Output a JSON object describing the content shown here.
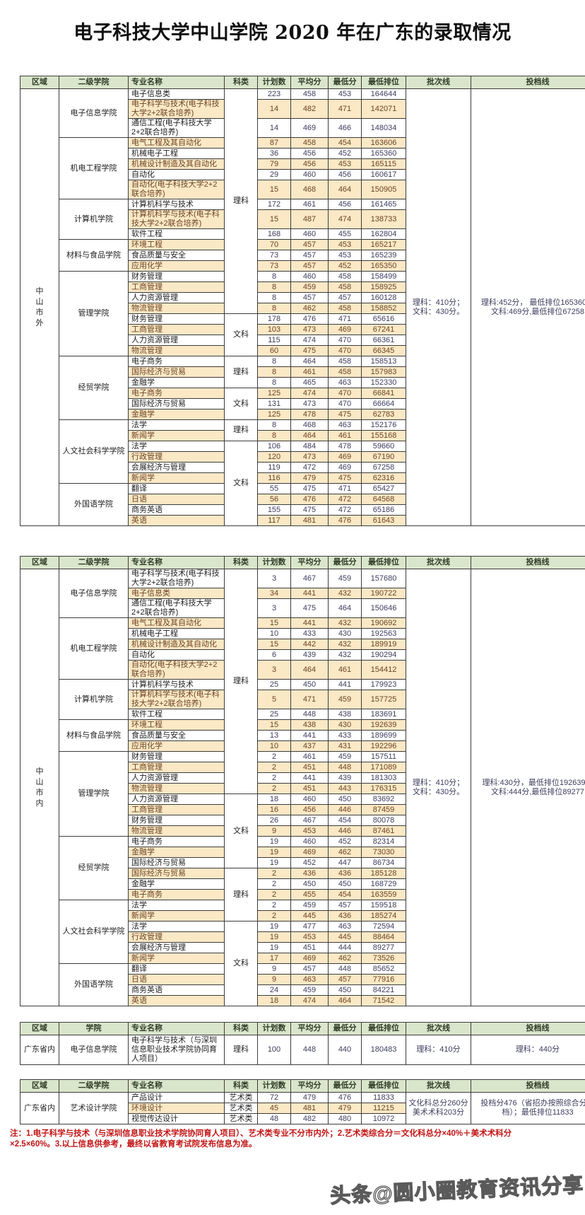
{
  "page": {
    "title": "电子科技大学中山学院 2020 年在广东的录取情况",
    "watermark": "头条@圆小圈教育资讯分享"
  },
  "note": {
    "line1": "注：1.电子科学与技术（与深圳信息职业技术学院协同育人项目）、艺术类专业不分市内外；2.艺术类综合分＝文化科总分×40%＋美术术科分",
    "line2": "×2.5×60%。3.以上信息供参考，最终以省教育考试院发布信息为准。"
  },
  "tables": [
    {
      "headers": [
        "区域",
        "二级学院",
        "专业名称",
        "科类",
        "计划数",
        "平均分",
        "最低分",
        "最低排位",
        "批次线",
        "投档线"
      ],
      "region": {
        "text": "中山市外",
        "vertical": true
      },
      "batch_line": [
        "理科：410分；",
        "文科：430分。"
      ],
      "admission_line": [
        "理科:452分， 最低排位165360；",
        "文科:469分,最低排位67258"
      ],
      "rows": [
        {
          "college": "电子信息学院",
          "cspan": 3,
          "subject": "理科",
          "sspan": 18,
          "major": "电子信息类",
          "plan": "223",
          "avg": "458",
          "min": "453",
          "rank": "164644"
        },
        {
          "major": "电子科学与技术(电子科技大学2+2联合培养)",
          "tall": 2,
          "plan": "14",
          "avg": "482",
          "min": "471",
          "rank": "142071"
        },
        {
          "major": "通信工程(电子科技大学2+2联合培养)",
          "tall": 2,
          "plan": "14",
          "avg": "469",
          "min": "466",
          "rank": "148034"
        },
        {
          "college": "机电工程学院",
          "cspan": 5,
          "major": "电气工程及其自动化",
          "plan": "87",
          "avg": "458",
          "min": "454",
          "rank": "163606"
        },
        {
          "major": "机械电子工程",
          "plan": "36",
          "avg": "456",
          "min": "452",
          "rank": "165360"
        },
        {
          "major": "机械设计制造及其自动化",
          "plan": "79",
          "avg": "456",
          "min": "453",
          "rank": "165115"
        },
        {
          "major": "自动化",
          "plan": "29",
          "avg": "460",
          "min": "456",
          "rank": "160617"
        },
        {
          "major": "自动化(电子科技大学2+2联合培养)",
          "tall": 2,
          "plan": "15",
          "avg": "468",
          "min": "464",
          "rank": "150905"
        },
        {
          "college": "计算机学院",
          "cspan": 3,
          "major": "计算机科学与技术",
          "plan": "172",
          "avg": "461",
          "min": "456",
          "rank": "161465"
        },
        {
          "major": "计算机科学与技术(电子科技大学2+2联合培养)",
          "tall": 2,
          "plan": "15",
          "avg": "487",
          "min": "474",
          "rank": "138733"
        },
        {
          "major": "软件工程",
          "plan": "168",
          "avg": "460",
          "min": "455",
          "rank": "162804"
        },
        {
          "college": "材料与食品学院",
          "cspan": 3,
          "major": "环境工程",
          "plan": "70",
          "avg": "457",
          "min": "453",
          "rank": "165217"
        },
        {
          "major": "食品质量与安全",
          "plan": "73",
          "avg": "457",
          "min": "453",
          "rank": "165239"
        },
        {
          "major": "应用化学",
          "plan": "73",
          "avg": "457",
          "min": "452",
          "rank": "165350"
        },
        {
          "college": "管理学院",
          "cspan": 8,
          "major": "财务管理",
          "plan": "8",
          "avg": "460",
          "min": "458",
          "rank": "158499"
        },
        {
          "major": "工商管理",
          "plan": "8",
          "avg": "459",
          "min": "458",
          "rank": "158925"
        },
        {
          "major": "人力资源管理",
          "plan": "8",
          "avg": "457",
          "min": "457",
          "rank": "160128"
        },
        {
          "major": "物流管理",
          "plan": "8",
          "avg": "462",
          "min": "458",
          "rank": "158852"
        },
        {
          "major": "财务管理",
          "subject": "文科",
          "sspan": 4,
          "plan": "178",
          "avg": "476",
          "min": "471",
          "rank": "65616"
        },
        {
          "major": "工商管理",
          "plan": "103",
          "avg": "473",
          "min": "469",
          "rank": "67241"
        },
        {
          "major": "人力资源管理",
          "plan": "115",
          "avg": "474",
          "min": "470",
          "rank": "66361"
        },
        {
          "major": "物流管理",
          "plan": "60",
          "avg": "475",
          "min": "470",
          "rank": "66345"
        },
        {
          "college": "经贸学院",
          "cspan": 6,
          "major": "电子商务",
          "subject": "理科",
          "sspan": 3,
          "plan": "8",
          "avg": "464",
          "min": "458",
          "rank": "158513"
        },
        {
          "major": "国际经济与贸易",
          "plan": "8",
          "avg": "461",
          "min": "458",
          "rank": "157983"
        },
        {
          "major": "金融学",
          "plan": "8",
          "avg": "465",
          "min": "463",
          "rank": "152330"
        },
        {
          "major": "电子商务",
          "subject": "文科",
          "sspan": 3,
          "plan": "125",
          "avg": "474",
          "min": "470",
          "rank": "66841"
        },
        {
          "major": "国际经济与贸易",
          "plan": "131",
          "avg": "473",
          "min": "470",
          "rank": "66664"
        },
        {
          "major": "金融学",
          "plan": "125",
          "avg": "478",
          "min": "475",
          "rank": "62783"
        },
        {
          "college": "人文社会科学学院",
          "cspan": 6,
          "major": "法学",
          "subject": "理科",
          "sspan": 2,
          "plan": "8",
          "avg": "468",
          "min": "463",
          "rank": "152176"
        },
        {
          "major": "新闻学",
          "plan": "8",
          "avg": "464",
          "min": "461",
          "rank": "155168"
        },
        {
          "major": "法学",
          "subject": "文科",
          "sspan": 8,
          "plan": "106",
          "avg": "484",
          "min": "478",
          "rank": "59660"
        },
        {
          "major": "行政管理",
          "plan": "120",
          "avg": "473",
          "min": "469",
          "rank": "67190"
        },
        {
          "major": "会展经济与管理",
          "plan": "119",
          "avg": "472",
          "min": "469",
          "rank": "67258"
        },
        {
          "major": "新闻学",
          "plan": "116",
          "avg": "479",
          "min": "475",
          "rank": "62316"
        },
        {
          "college": "外国语学院",
          "cspan": 4,
          "major": "翻译",
          "plan": "55",
          "avg": "475",
          "min": "471",
          "rank": "65427"
        },
        {
          "major": "日语",
          "plan": "56",
          "avg": "476",
          "min": "472",
          "rank": "64568"
        },
        {
          "major": "商务英语",
          "plan": "155",
          "avg": "475",
          "min": "472",
          "rank": "65186"
        },
        {
          "major": "英语",
          "plan": "117",
          "avg": "481",
          "min": "476",
          "rank": "61643"
        }
      ]
    },
    {
      "headers": [
        "区域",
        "二级学院",
        "专业名称",
        "科类",
        "计划数",
        "平均分",
        "最低分",
        "最低排位",
        "批次线",
        "投档线"
      ],
      "region": {
        "text": "中山市内",
        "vertical": true
      },
      "batch_line": [
        "理科：410分；",
        "文科：430分。"
      ],
      "admission_line": [
        "理科:430分，最低排位192639；",
        "文科:444分,最低排位89277"
      ],
      "rows": [
        {
          "college": "电子信息学院",
          "cspan": 3,
          "subject": "理科",
          "sspan": 18,
          "major": "电子科学与技术(电子科技大学2+2联合培养)",
          "tall": 2,
          "plan": "3",
          "avg": "467",
          "min": "459",
          "rank": "157680"
        },
        {
          "major": "电子信息类",
          "plan": "34",
          "avg": "441",
          "min": "432",
          "rank": "190722"
        },
        {
          "major": "通信工程(电子科技大学2+2联合培养)",
          "tall": 2,
          "plan": "3",
          "avg": "475",
          "min": "464",
          "rank": "150646"
        },
        {
          "college": "机电工程学院",
          "cspan": 5,
          "major": "电气工程及其自动化",
          "plan": "15",
          "avg": "441",
          "min": "432",
          "rank": "190692"
        },
        {
          "major": "机械电子工程",
          "plan": "10",
          "avg": "433",
          "min": "430",
          "rank": "192563"
        },
        {
          "major": "机械设计制造及其自动化",
          "plan": "15",
          "avg": "442",
          "min": "432",
          "rank": "189919"
        },
        {
          "major": "自动化",
          "plan": "6",
          "avg": "439",
          "min": "432",
          "rank": "190294"
        },
        {
          "major": "自动化(电子科技大学2+2联合培养)",
          "tall": 2,
          "plan": "3",
          "avg": "464",
          "min": "461",
          "rank": "154412"
        },
        {
          "college": "计算机学院",
          "cspan": 3,
          "major": "计算机科学与技术",
          "plan": "25",
          "avg": "450",
          "min": "441",
          "rank": "179923"
        },
        {
          "major": "计算机科学与技术(电子科技大学2+2联合培养)",
          "tall": 2,
          "plan": "5",
          "avg": "471",
          "min": "459",
          "rank": "157725"
        },
        {
          "major": "软件工程",
          "plan": "25",
          "avg": "448",
          "min": "438",
          "rank": "183691"
        },
        {
          "college": "材料与食品学院",
          "cspan": 3,
          "major": "环境工程",
          "plan": "15",
          "avg": "438",
          "min": "430",
          "rank": "192639"
        },
        {
          "major": "食品质量与安全",
          "plan": "13",
          "avg": "441",
          "min": "433",
          "rank": "189699"
        },
        {
          "major": "应用化学",
          "plan": "10",
          "avg": "437",
          "min": "431",
          "rank": "192296"
        },
        {
          "college": "管理学院",
          "cspan": 8,
          "major": "财务管理",
          "plan": "2",
          "avg": "461",
          "min": "459",
          "rank": "157511"
        },
        {
          "major": "工商管理",
          "plan": "2",
          "avg": "451",
          "min": "448",
          "rank": "171089"
        },
        {
          "major": "人力资源管理",
          "plan": "2",
          "avg": "441",
          "min": "439",
          "rank": "181303"
        },
        {
          "major": "物流管理",
          "plan": "2",
          "avg": "451",
          "min": "443",
          "rank": "176315"
        },
        {
          "major": "人力资源管理",
          "subject": "文科",
          "sspan": 7,
          "plan": "18",
          "avg": "460",
          "min": "450",
          "rank": "83692"
        },
        {
          "major": "工商管理",
          "plan": "16",
          "avg": "456",
          "min": "446",
          "rank": "87459"
        },
        {
          "major": "财务管理",
          "plan": "26",
          "avg": "467",
          "min": "454",
          "rank": "80078"
        },
        {
          "major": "物流管理",
          "plan": "9",
          "avg": "453",
          "min": "446",
          "rank": "87461"
        },
        {
          "college": "经贸学院",
          "cspan": 6,
          "major": "电子商务",
          "plan": "19",
          "avg": "460",
          "min": "452",
          "rank": "82314"
        },
        {
          "major": "金融学",
          "plan": "19",
          "avg": "469",
          "min": "462",
          "rank": "73030"
        },
        {
          "major": "国际经济与贸易",
          "plan": "19",
          "avg": "452",
          "min": "447",
          "rank": "86734"
        },
        {
          "major": "国际经济与贸易",
          "subject": "理科",
          "sspan": 5,
          "plan": "2",
          "avg": "436",
          "min": "436",
          "rank": "185128"
        },
        {
          "major": "金融学",
          "plan": "2",
          "avg": "450",
          "min": "450",
          "rank": "168729"
        },
        {
          "major": "电子商务",
          "plan": "2",
          "avg": "455",
          "min": "454",
          "rank": "163559"
        },
        {
          "college": "人文社会科学学院",
          "cspan": 6,
          "major": "法学",
          "plan": "2",
          "avg": "459",
          "min": "457",
          "rank": "159518"
        },
        {
          "major": "新闻学",
          "plan": "2",
          "avg": "445",
          "min": "436",
          "rank": "185274"
        },
        {
          "major": "法学",
          "subject": "文科",
          "sspan": 8,
          "plan": "19",
          "avg": "477",
          "min": "463",
          "rank": "72594"
        },
        {
          "major": "行政管理",
          "plan": "19",
          "avg": "453",
          "min": "445",
          "rank": "88464"
        },
        {
          "major": "会展经济与管理",
          "plan": "19",
          "avg": "451",
          "min": "444",
          "rank": "89277"
        },
        {
          "major": "新闻学",
          "plan": "17",
          "avg": "469",
          "min": "462",
          "rank": "73526"
        },
        {
          "college": "外国语学院",
          "cspan": 4,
          "major": "翻译",
          "plan": "9",
          "avg": "457",
          "min": "448",
          "rank": "85652"
        },
        {
          "major": "日语",
          "plan": "9",
          "avg": "463",
          "min": "457",
          "rank": "77916"
        },
        {
          "major": "商务英语",
          "plan": "24",
          "avg": "459",
          "min": "450",
          "rank": "84221"
        },
        {
          "major": "英语",
          "plan": "18",
          "avg": "474",
          "min": "464",
          "rank": "71542"
        }
      ]
    },
    {
      "headers": [
        "区域",
        "学院",
        "专业名称",
        "科类",
        "计划数",
        "平均分",
        "最低分",
        "最低排位",
        "批次线",
        "投档线"
      ],
      "region": {
        "text": "广东省内",
        "vertical": false
      },
      "batch_line": [
        "理科：410分"
      ],
      "admission_line": [
        "理科：440分"
      ],
      "rows": [
        {
          "college": "电子信息学院",
          "cspan": 1,
          "major": "电子科学与技术（与深圳信息职业技术学院协同育人项目）",
          "tall": 3,
          "subject": "理科",
          "sspan": 1,
          "plan": "100",
          "avg": "448",
          "min": "440",
          "rank": "180483"
        }
      ]
    },
    {
      "headers": [
        "区域",
        "二级学院",
        "专业名称",
        "科类",
        "计划数",
        "平均分",
        "最低分",
        "最低排位",
        "批次线",
        "投档线"
      ],
      "region": {
        "text": "广东省内",
        "vertical": false
      },
      "batch_line": [
        "文化科总分260分",
        "美术术科203分"
      ],
      "admission_line": [
        "投档分476（省招办按照综合分投档）；最低排位11833"
      ],
      "rows": [
        {
          "college": "艺术设计学院",
          "cspan": 3,
          "major": "产品设计",
          "subject": "艺术类",
          "sspan": 1,
          "plan": "72",
          "avg": "479",
          "min": "476",
          "rank": "11833"
        },
        {
          "major": "环境设计",
          "subject": "艺术类",
          "sspan": 1,
          "plan": "45",
          "avg": "481",
          "min": "479",
          "rank": "11215"
        },
        {
          "major": "视觉传达设计",
          "subject": "艺术类",
          "sspan": 1,
          "plan": "48",
          "avg": "482",
          "min": "480",
          "rank": "10972"
        }
      ]
    }
  ]
}
